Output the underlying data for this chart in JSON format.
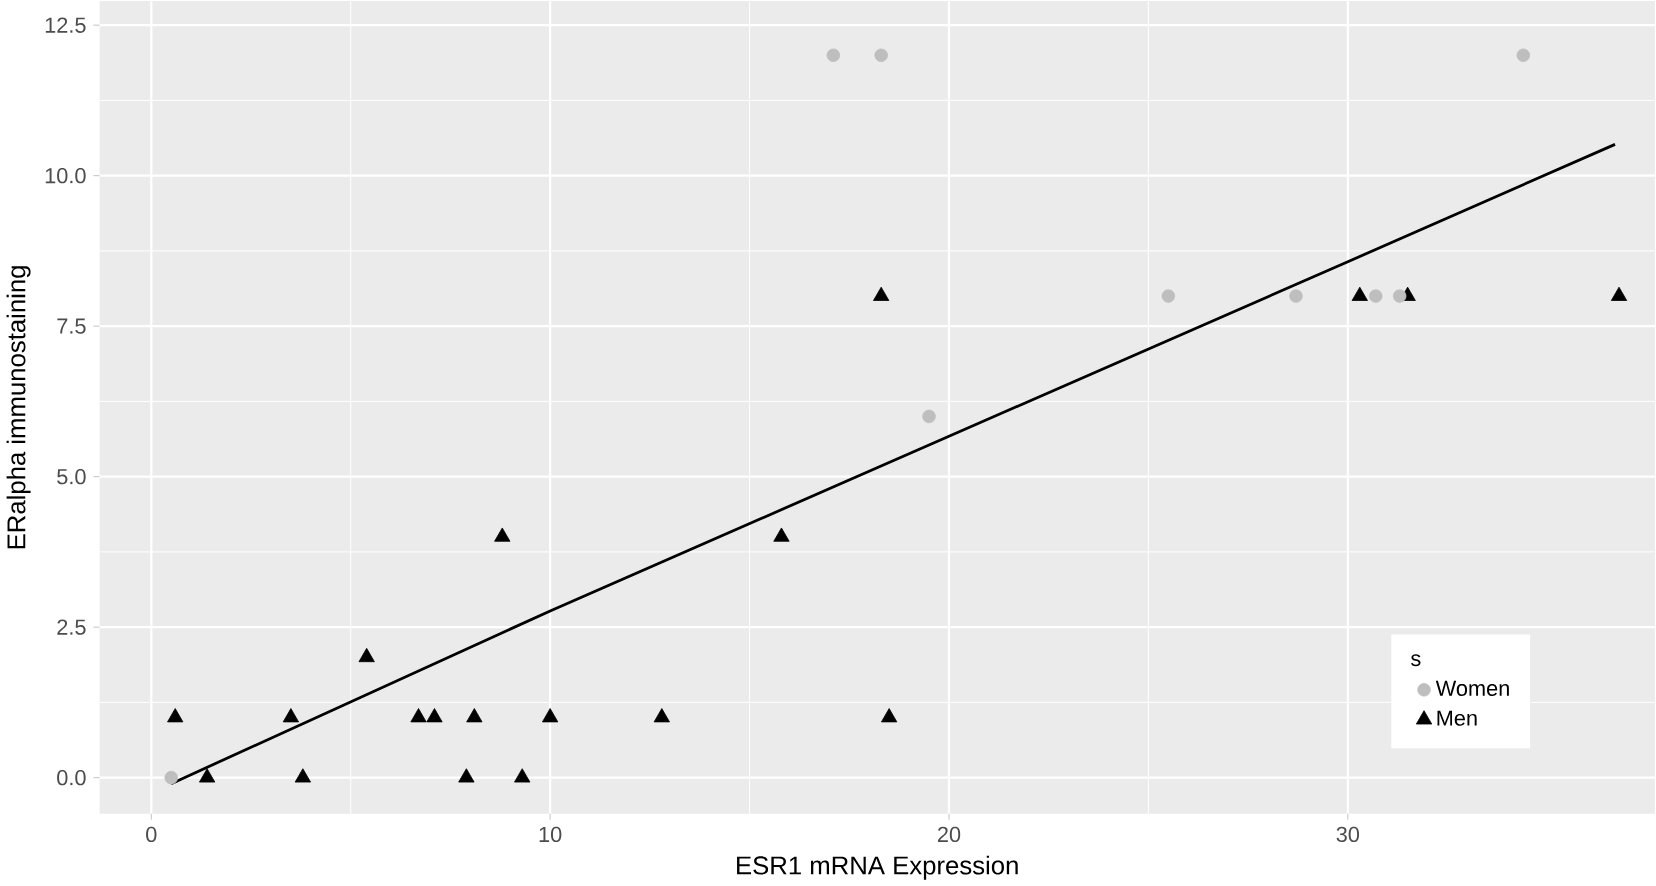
{
  "chart_data": {
    "type": "scatter",
    "xlabel": "ESR1 mRNA Expression",
    "ylabel": "ERalpha immunostaining",
    "legend_title": "s",
    "xlim": [
      -1.3,
      37.7
    ],
    "ylim": [
      -0.6,
      12.9
    ],
    "xticks": [
      0,
      10,
      20,
      30
    ],
    "yticks": [
      {
        "value": 0,
        "label": "0.0"
      },
      {
        "value": 2.5,
        "label": "2.5"
      },
      {
        "value": 5,
        "label": "5.0"
      },
      {
        "value": 7.5,
        "label": "7.5"
      },
      {
        "value": 10,
        "label": "10.0"
      },
      {
        "value": 12.5,
        "label": "12.5"
      }
    ],
    "grid": true,
    "legend": "bottom right",
    "series": [
      {
        "name": "Women",
        "color": "#bebebe",
        "marker": "circle",
        "x": [
          0.5,
          17.1,
          18.3,
          19.5,
          25.5,
          28.7,
          30.7,
          31.3,
          34.4
        ],
        "values": [
          0,
          12,
          12,
          6,
          8,
          8,
          8,
          8,
          12
        ]
      },
      {
        "name": "Men",
        "color": "#000000",
        "marker": "triangle",
        "x": [
          0.6,
          1.4,
          3.5,
          3.8,
          5.4,
          6.7,
          7.1,
          7.9,
          8.1,
          8.8,
          9.3,
          10,
          12.8,
          15.8,
          18.3,
          18.5,
          30.3,
          31.5,
          36.8
        ],
        "values": [
          1,
          0,
          1,
          0,
          2,
          1,
          1,
          0,
          1,
          4,
          0,
          1,
          1,
          4,
          8,
          1,
          8,
          8,
          8
        ]
      },
      {
        "type": "line",
        "color": "#000000",
        "marker": "none",
        "x": [
          0.5,
          10,
          20,
          30,
          36.7
        ],
        "values": [
          -0.1,
          2.77,
          5.67,
          8.57,
          10.52
        ]
      }
    ]
  }
}
